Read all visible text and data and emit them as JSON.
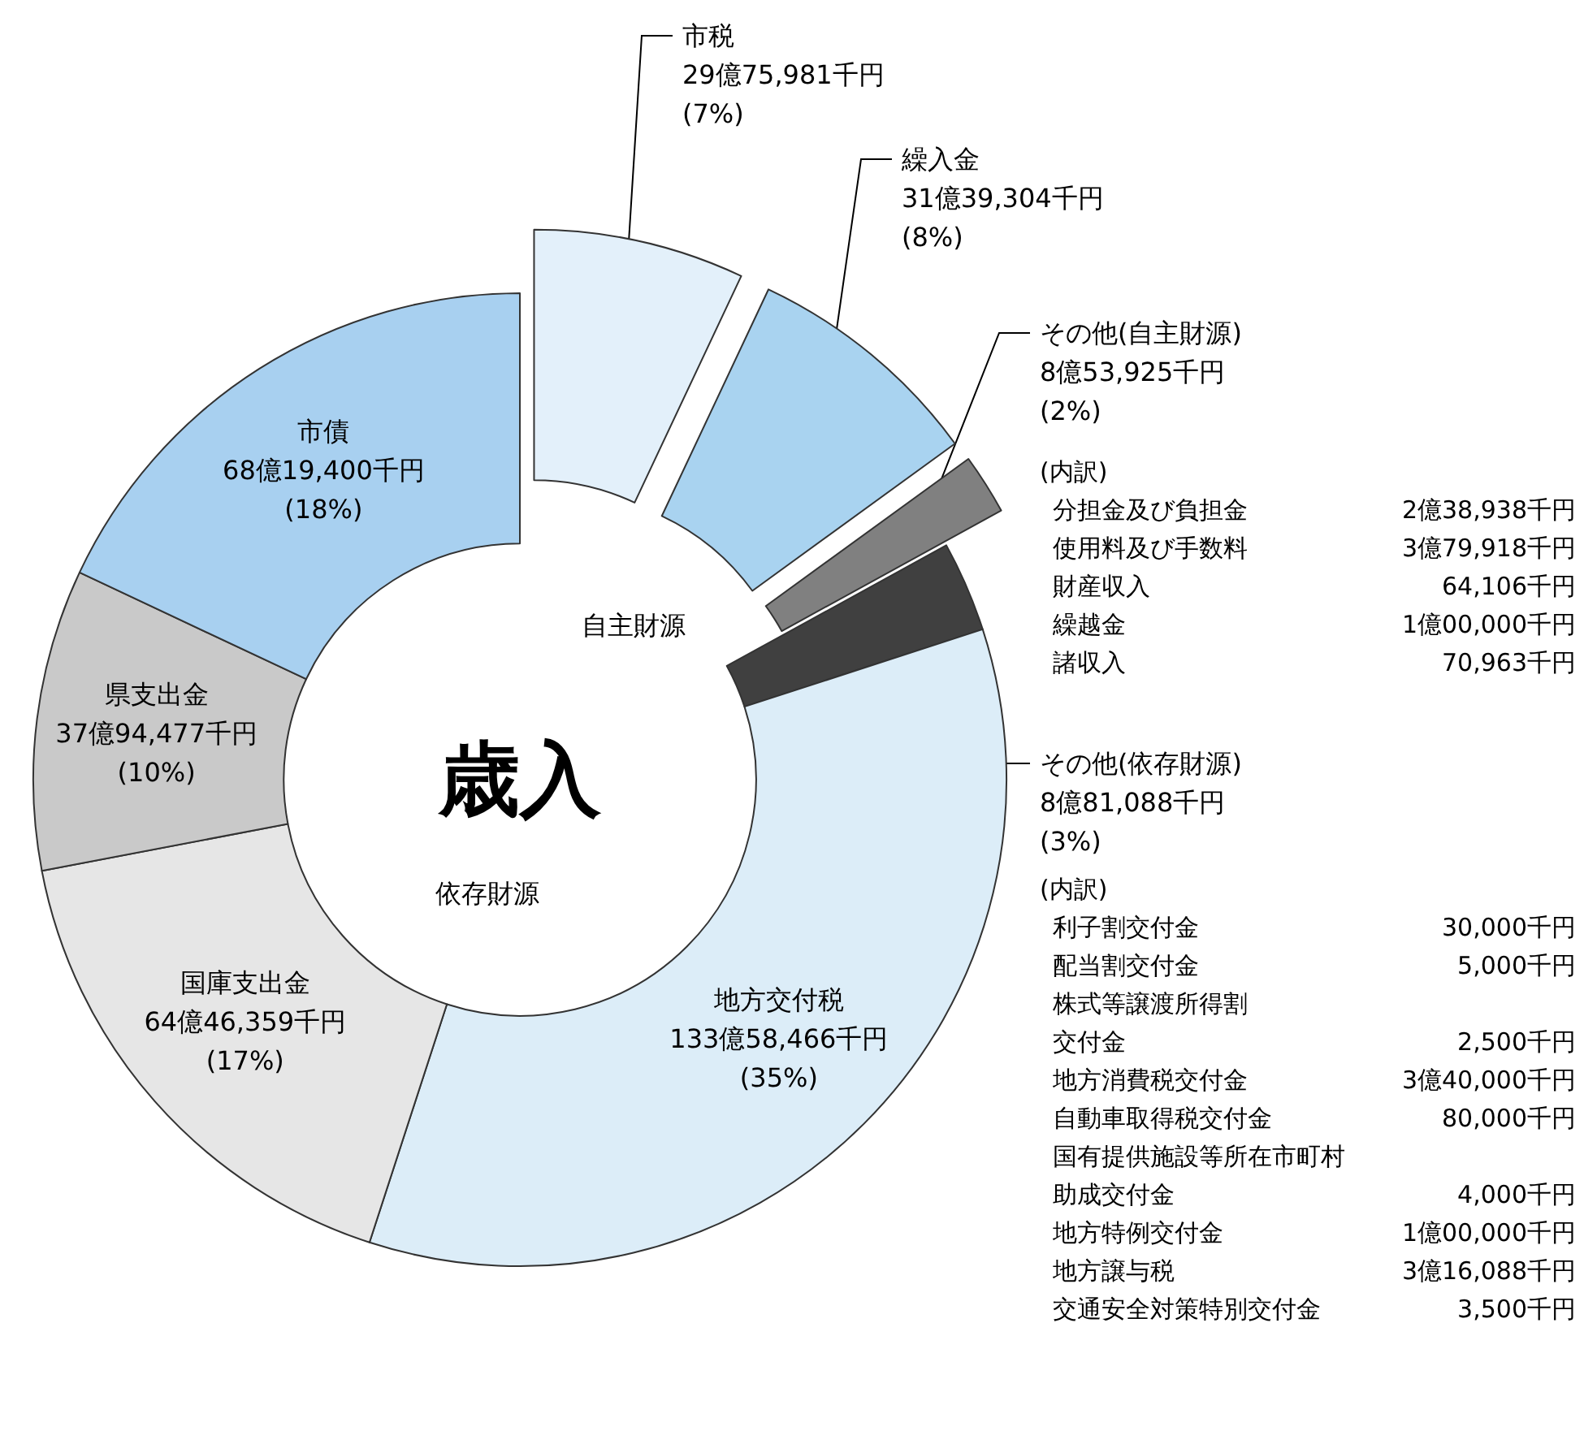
{
  "chart_data": {
    "type": "donut",
    "categories": [
      "市税",
      "繰入金",
      "その他(自主財源)",
      "その他(依存財源)",
      "地方交付税",
      "国庫支出金",
      "県支出金",
      "市債"
    ],
    "values": [
      7,
      8,
      2,
      3,
      35,
      17,
      10,
      18
    ],
    "value_labels": [
      "29億75,981千円\n(7%)",
      "31億39,304千円\n(8%)",
      "8億53,925千円\n(2%)",
      "8億81,088千円\n(3%)",
      "133億58,466千円\n(35%)",
      "64億46,359千円\n(17%)",
      "37億94,477千円\n(10%)",
      "68億19,400千円\n(18%)"
    ],
    "colors": [
      "#e3f0fa",
      "#a9d3f0",
      "#808080",
      "#404040",
      "#dcedf8",
      "#e6e6e6",
      "#c9c9c9",
      "#a8d0f0"
    ],
    "legend": false,
    "annotations": [
      "歳入",
      "自主財源",
      "依存財源",
      "(内訳)",
      "分担金及び負担金 2億38,938千円",
      "使用料及び手数料 3億79,918千円",
      "財産収入 64,106千円",
      "繰越金 1億00,000千円",
      "諸収入 70,963千円",
      "(内訳)",
      "利子割交付金 30,000千円",
      "配当割交付金 5,000千円",
      "株式等譲渡所得割",
      "交付金 2,500千円",
      "地方消費税交付金 3億40,000千円",
      "自動車取得税交付金 80,000千円",
      "国有提供施設等所在市町村",
      "助成交付金 4,000千円",
      "地方特例交付金 1億00,000千円",
      "地方譲与税 3億16,088千円",
      "交通安全対策特別交付金 3,500千円"
    ]
  }
}
